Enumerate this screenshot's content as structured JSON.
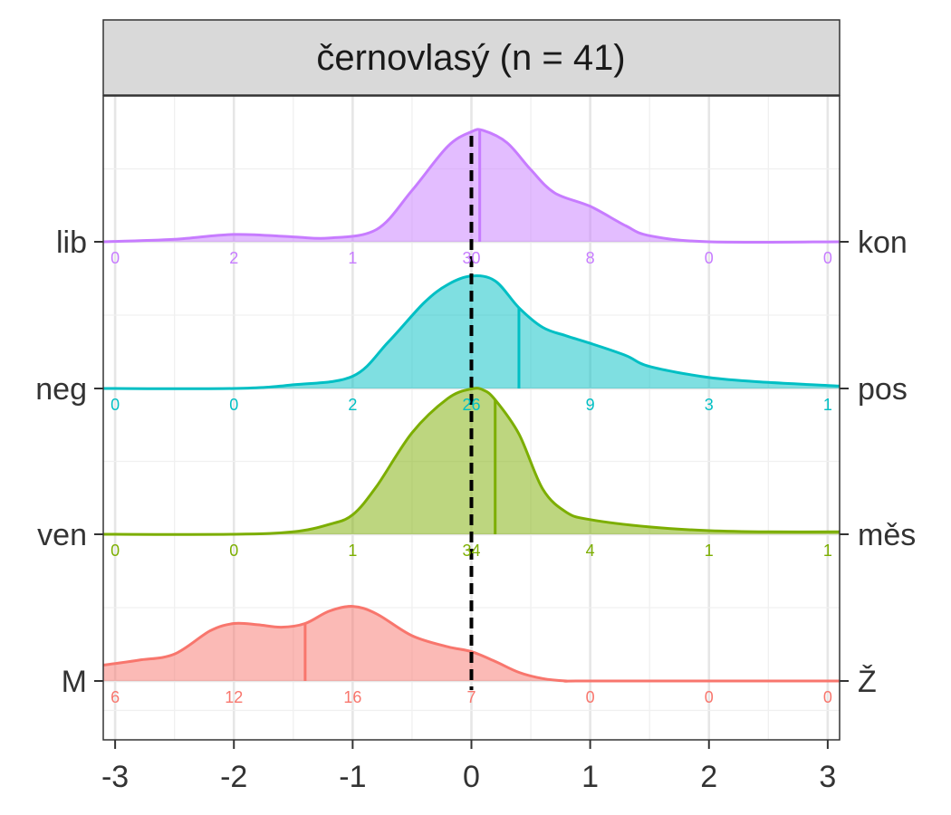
{
  "chart_data": {
    "type": "ridgeline-density",
    "title": "černovlasý (n = 41)",
    "xlim": [
      -3.1,
      3.1
    ],
    "x_ticks": [
      -3,
      -2,
      -1,
      0,
      1,
      2,
      3
    ],
    "x_tick_labels": [
      "-3",
      "-2",
      "-1",
      "0",
      "1",
      "2",
      "3"
    ],
    "reference_line": {
      "x": 0,
      "style": "dashed",
      "color": "#000000"
    },
    "grid": true,
    "count_positions": [
      -3,
      -2,
      -1,
      0,
      1,
      2,
      3
    ],
    "rows": [
      {
        "left_label": "M",
        "right_label": "Ž",
        "color": "#F8766D",
        "median": -1.4,
        "counts": [
          "6",
          "12",
          "16",
          "7",
          "0",
          "0",
          "0"
        ],
        "density": [
          [
            -3.1,
            0.13
          ],
          [
            -2.8,
            0.17
          ],
          [
            -2.5,
            0.22
          ],
          [
            -2.2,
            0.41
          ],
          [
            -2.0,
            0.47
          ],
          [
            -1.8,
            0.46
          ],
          [
            -1.6,
            0.44
          ],
          [
            -1.4,
            0.47
          ],
          [
            -1.2,
            0.57
          ],
          [
            -1.0,
            0.61
          ],
          [
            -0.8,
            0.55
          ],
          [
            -0.5,
            0.37
          ],
          [
            -0.2,
            0.28
          ],
          [
            0.0,
            0.24
          ],
          [
            0.2,
            0.16
          ],
          [
            0.4,
            0.07
          ],
          [
            0.6,
            0.02
          ],
          [
            0.8,
            0.0
          ],
          [
            1.0,
            0.0
          ],
          [
            3.1,
            0.0
          ]
        ]
      },
      {
        "left_label": "ven",
        "right_label": "měs",
        "color": "#7CAE00",
        "median": 0.2,
        "counts": [
          "0",
          "0",
          "1",
          "34",
          "4",
          "1",
          "1"
        ],
        "density": [
          [
            -3.1,
            0.0
          ],
          [
            -2.0,
            0.0
          ],
          [
            -1.5,
            0.02
          ],
          [
            -1.2,
            0.08
          ],
          [
            -1.0,
            0.16
          ],
          [
            -0.8,
            0.39
          ],
          [
            -0.5,
            0.83
          ],
          [
            -0.2,
            1.11
          ],
          [
            0.0,
            1.19
          ],
          [
            0.1,
            1.18
          ],
          [
            0.2,
            1.1
          ],
          [
            0.4,
            0.82
          ],
          [
            0.6,
            0.37
          ],
          [
            0.8,
            0.18
          ],
          [
            1.0,
            0.12
          ],
          [
            1.5,
            0.06
          ],
          [
            2.0,
            0.03
          ],
          [
            2.5,
            0.02
          ],
          [
            3.1,
            0.02
          ]
        ]
      },
      {
        "left_label": "neg",
        "right_label": "pos",
        "color": "#00BFC4",
        "median": 0.4,
        "counts": [
          "0",
          "0",
          "2",
          "26",
          "9",
          "3",
          "1"
        ],
        "density": [
          [
            -3.1,
            0.0
          ],
          [
            -2.0,
            0.0
          ],
          [
            -1.5,
            0.03
          ],
          [
            -1.0,
            0.1
          ],
          [
            -0.7,
            0.38
          ],
          [
            -0.4,
            0.7
          ],
          [
            -0.2,
            0.85
          ],
          [
            0.0,
            0.92
          ],
          [
            0.2,
            0.88
          ],
          [
            0.4,
            0.66
          ],
          [
            0.6,
            0.5
          ],
          [
            0.8,
            0.43
          ],
          [
            1.0,
            0.37
          ],
          [
            1.3,
            0.27
          ],
          [
            1.5,
            0.18
          ],
          [
            2.0,
            0.09
          ],
          [
            2.5,
            0.05
          ],
          [
            3.1,
            0.02
          ]
        ]
      },
      {
        "left_label": "lib",
        "right_label": "kon",
        "color": "#C77CFF",
        "median": 0.07,
        "counts": [
          "0",
          "2",
          "1",
          "30",
          "8",
          "0",
          "0"
        ],
        "density": [
          [
            -3.1,
            0.0
          ],
          [
            -2.5,
            0.02
          ],
          [
            -2.0,
            0.06
          ],
          [
            -1.5,
            0.04
          ],
          [
            -1.2,
            0.03
          ],
          [
            -0.8,
            0.1
          ],
          [
            -0.5,
            0.42
          ],
          [
            -0.2,
            0.78
          ],
          [
            0.0,
            0.9
          ],
          [
            0.1,
            0.91
          ],
          [
            0.3,
            0.81
          ],
          [
            0.5,
            0.59
          ],
          [
            0.7,
            0.4
          ],
          [
            1.0,
            0.29
          ],
          [
            1.3,
            0.13
          ],
          [
            1.5,
            0.05
          ],
          [
            2.0,
            0.0
          ],
          [
            3.1,
            0.0
          ]
        ]
      }
    ]
  }
}
